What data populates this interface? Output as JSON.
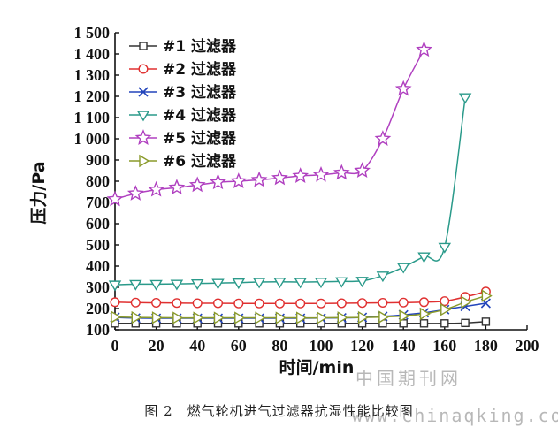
{
  "chart_data": {
    "type": "line",
    "xlabel": "时间/min",
    "ylabel": "压力/Pa",
    "xlim": [
      0,
      200
    ],
    "ylim": [
      100,
      1500
    ],
    "xticks": [
      "0",
      "20",
      "40",
      "60",
      "80",
      "100",
      "120",
      "140",
      "160",
      "180",
      "200"
    ],
    "yticks": [
      "100",
      "200",
      "300",
      "400",
      "500",
      "600",
      "700",
      "800",
      "900",
      "1 000",
      "1 100",
      "1 200",
      "1 300",
      "1 400",
      "1 500"
    ],
    "grid": false,
    "legend_position": "top-left",
    "series": [
      {
        "name": "#1 过滤器",
        "color": "#333333",
        "marker": "square",
        "x": [
          0,
          10,
          20,
          30,
          40,
          50,
          60,
          70,
          80,
          90,
          100,
          110,
          120,
          130,
          140,
          150,
          160,
          170,
          180
        ],
        "y": [
          130,
          130,
          130,
          130,
          130,
          130,
          130,
          130,
          130,
          130,
          130,
          130,
          130,
          130,
          130,
          130,
          130,
          132,
          138
        ]
      },
      {
        "name": "#2 过滤器",
        "color": "#e03030",
        "marker": "circle",
        "x": [
          0,
          10,
          20,
          30,
          40,
          50,
          60,
          70,
          80,
          90,
          100,
          110,
          120,
          130,
          140,
          150,
          160,
          170,
          180
        ],
        "y": [
          230,
          228,
          227,
          226,
          225,
          225,
          224,
          224,
          224,
          224,
          224,
          225,
          226,
          227,
          228,
          230,
          235,
          255,
          280
        ]
      },
      {
        "name": "#3 过滤器",
        "color": "#2244bb",
        "marker": "x",
        "x": [
          0,
          10,
          20,
          30,
          40,
          50,
          60,
          70,
          80,
          90,
          100,
          110,
          120,
          130,
          140,
          150,
          160,
          170,
          180
        ],
        "y": [
          158,
          155,
          154,
          154,
          154,
          154,
          154,
          154,
          154,
          154,
          155,
          156,
          158,
          163,
          170,
          180,
          195,
          210,
          225
        ]
      },
      {
        "name": "#4 过滤器",
        "color": "#2a9a8a",
        "marker": "triangle-down",
        "x": [
          0,
          10,
          20,
          30,
          40,
          50,
          60,
          70,
          80,
          90,
          100,
          110,
          120,
          130,
          140,
          150,
          160,
          170
        ],
        "y": [
          312,
          315,
          315,
          316,
          318,
          320,
          322,
          325,
          326,
          325,
          326,
          328,
          330,
          355,
          395,
          445,
          490,
          1195
        ]
      },
      {
        "name": "#5 过滤器",
        "color": "#b040c0",
        "marker": "star",
        "x": [
          0,
          10,
          20,
          30,
          40,
          50,
          60,
          70,
          80,
          90,
          100,
          110,
          120,
          130,
          140,
          150
        ],
        "y": [
          715,
          742,
          760,
          770,
          782,
          795,
          800,
          806,
          815,
          825,
          830,
          840,
          850,
          1000,
          1235,
          1420
        ]
      },
      {
        "name": "#6 过滤器",
        "color": "#8a9a2a",
        "marker": "triangle-right",
        "x": [
          0,
          10,
          20,
          30,
          40,
          50,
          60,
          70,
          80,
          90,
          100,
          110,
          120,
          130,
          140,
          150,
          160,
          170,
          180
        ],
        "y": [
          160,
          158,
          157,
          156,
          156,
          156,
          156,
          156,
          156,
          156,
          156,
          157,
          158,
          160,
          165,
          175,
          195,
          230,
          260
        ]
      }
    ]
  },
  "caption": "图 2　燃气轮机进气过滤器抗湿性能比较图",
  "watermark": {
    "line1": "中国期刊网",
    "line2": "www.chinaqking.com"
  }
}
